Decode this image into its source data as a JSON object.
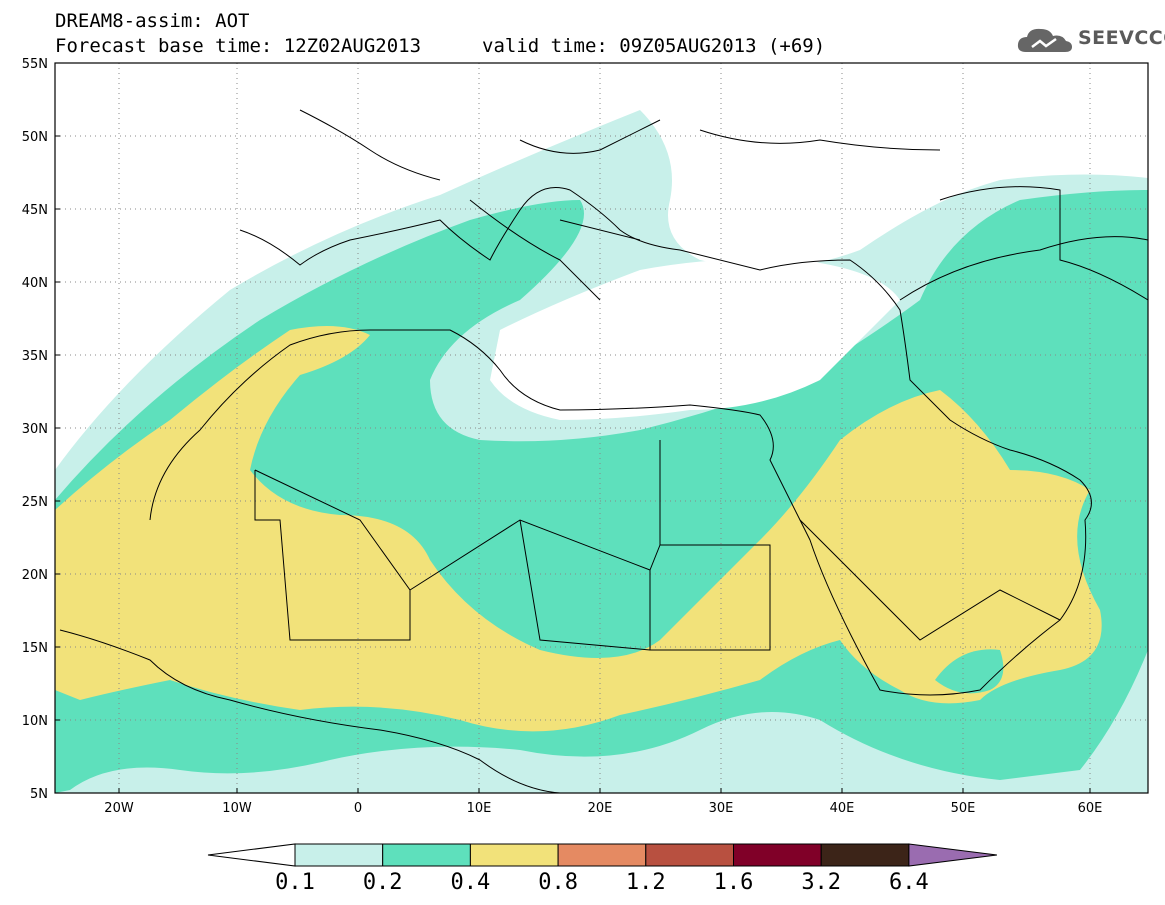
{
  "header": {
    "title_line1": "DREAM8-assim: AOT",
    "title_line2": "Forecast base time: 12Z02AUG2013",
    "valid_time": "valid time: 09Z05AUG2013 (+69)"
  },
  "logo": {
    "text": "SEEVCCC",
    "icon": "cloud-icon"
  },
  "axes": {
    "lat_labels": [
      "55N",
      "50N",
      "45N",
      "40N",
      "35N",
      "30N",
      "25N",
      "20N",
      "15N",
      "10N",
      "5N"
    ],
    "lon_labels": [
      "20W",
      "10W",
      "0",
      "10E",
      "20E",
      "30E",
      "40E",
      "50E",
      "60E"
    ]
  },
  "legend": {
    "labels": [
      "0.1",
      "0.2",
      "0.4",
      "0.8",
      "1.2",
      "1.6",
      "3.2",
      "6.4"
    ],
    "colors": [
      "#c8f0ea",
      "#5ee0bc",
      "#f2e27a",
      "#e58a62",
      "#b85040",
      "#800028",
      "#3c2418",
      "#9a6cb0"
    ]
  },
  "chart_data": {
    "type": "heatmap",
    "title": "DREAM8-assim: AOT",
    "variable": "AOT",
    "lon_range": [
      -25,
      65
    ],
    "lat_range": [
      5,
      55
    ],
    "levels": [
      0.1,
      0.2,
      0.4,
      0.8,
      1.2,
      1.6,
      3.2,
      6.4
    ],
    "colors": [
      "#c8f0ea",
      "#5ee0bc",
      "#f2e27a",
      "#e58a62",
      "#b85040",
      "#800028",
      "#3c2418",
      "#9a6cb0"
    ],
    "grid": true
  }
}
